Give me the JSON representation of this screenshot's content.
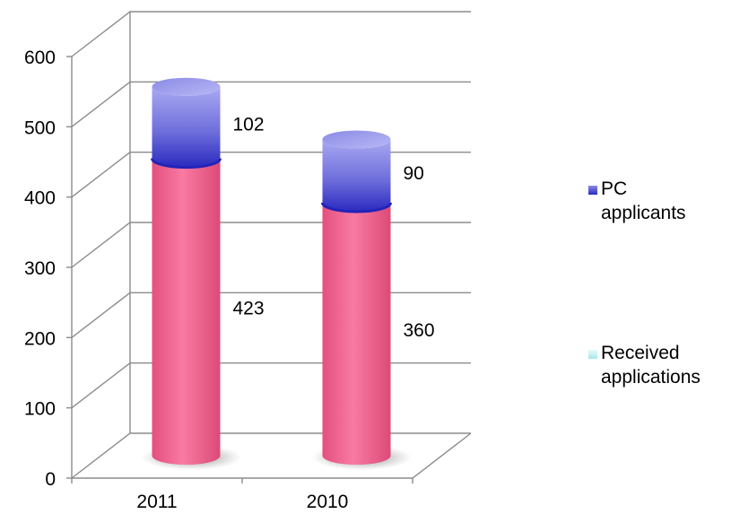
{
  "chart_data": {
    "type": "bar",
    "stacked": true,
    "three_d": true,
    "categories": [
      "2011",
      "2010"
    ],
    "series": [
      {
        "name": "Received applications",
        "values": [
          423,
          360
        ],
        "color": "#f06a95",
        "legend_swatch": "#bfeef1"
      },
      {
        "name": "PC applicants",
        "values": [
          102,
          90
        ],
        "color": "#5a5ad8",
        "legend_swatch": "#4a4ac8"
      }
    ],
    "legend": [
      "PC applicants",
      "Received applications"
    ],
    "ylim": [
      0,
      600
    ],
    "yticks": [
      "0",
      "100",
      "200",
      "300",
      "400",
      "500",
      "600"
    ],
    "grid": true,
    "legend_position": "right",
    "title": "",
    "xlabel": "",
    "ylabel": ""
  }
}
